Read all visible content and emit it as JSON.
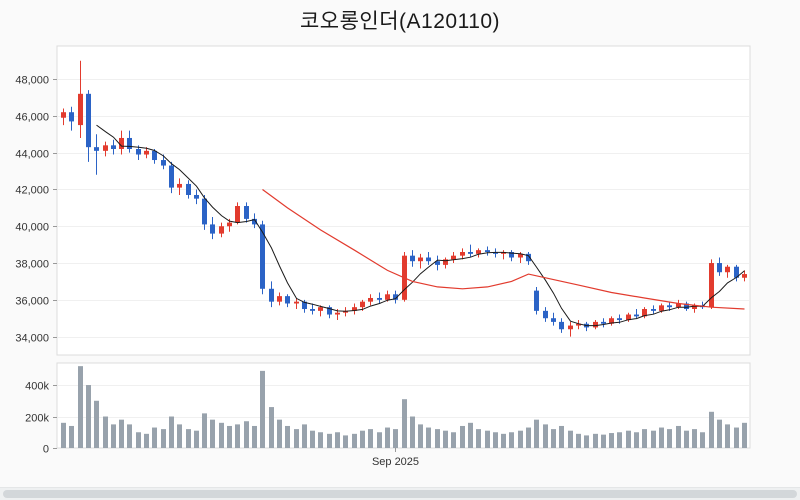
{
  "page": {
    "background": "#fafafa"
  },
  "chart_data": {
    "type": "candlestick",
    "title": "코오롱인더(A120110)",
    "x_axis": {
      "tick_index": 40,
      "tick_label": "Sep 2025"
    },
    "price_axis": {
      "min": 33000,
      "max": 49800,
      "ticks": [
        {
          "v": 48000,
          "label": "48,000"
        },
        {
          "v": 46000,
          "label": "46,000"
        },
        {
          "v": 44000,
          "label": "44,000"
        },
        {
          "v": 42000,
          "label": "42,000"
        },
        {
          "v": 40000,
          "label": "40,000"
        },
        {
          "v": 38000,
          "label": "38,000"
        },
        {
          "v": 36000,
          "label": "36,000"
        },
        {
          "v": 34000,
          "label": "34,000"
        }
      ]
    },
    "volume_axis": {
      "max": 540000,
      "ticks": [
        {
          "v": 400000,
          "label": "400k"
        },
        {
          "v": 200000,
          "label": "200k"
        },
        {
          "v": 0,
          "label": "0"
        }
      ]
    },
    "colors": {
      "up": "#e23b2e",
      "down": "#2b63c6",
      "volume": "#98a2ac",
      "ma_short": "#1a1a1a",
      "ma_long": "#e23b2e",
      "panel_border": "#dcdcdc",
      "grid": "#f0f0f0",
      "axis_text": "#333333"
    },
    "candles": [
      [
        45900,
        46400,
        45500,
        46200
      ],
      [
        46200,
        46500,
        45200,
        45700
      ],
      [
        45500,
        49000,
        44800,
        47200
      ],
      [
        47200,
        47400,
        43500,
        44300
      ],
      [
        44300,
        45000,
        42800,
        44100
      ],
      [
        44100,
        44600,
        43800,
        44400
      ],
      [
        44400,
        44700,
        43900,
        44200
      ],
      [
        44200,
        45200,
        43900,
        44800
      ],
      [
        44800,
        45200,
        44000,
        44200
      ],
      [
        44200,
        44400,
        43600,
        43900
      ],
      [
        43900,
        44300,
        43700,
        44100
      ],
      [
        44100,
        44200,
        43400,
        43600
      ],
      [
        43600,
        43900,
        43100,
        43300
      ],
      [
        43300,
        43500,
        41800,
        42100
      ],
      [
        42100,
        42600,
        41700,
        42300
      ],
      [
        42300,
        42500,
        41500,
        41700
      ],
      [
        41700,
        42000,
        41200,
        41500
      ],
      [
        41500,
        41700,
        39800,
        40100
      ],
      [
        40100,
        40500,
        39300,
        39600
      ],
      [
        39600,
        40200,
        39400,
        40000
      ],
      [
        40000,
        40400,
        39700,
        40200
      ],
      [
        40200,
        41300,
        40100,
        41100
      ],
      [
        41100,
        41300,
        40200,
        40400
      ],
      [
        40400,
        40700,
        39900,
        40100
      ],
      [
        40100,
        40300,
        36300,
        36600
      ],
      [
        36600,
        37000,
        35600,
        35900
      ],
      [
        35900,
        36400,
        35700,
        36200
      ],
      [
        36200,
        36300,
        35600,
        35800
      ],
      [
        35800,
        36100,
        35500,
        35900
      ],
      [
        35900,
        36000,
        35300,
        35500
      ],
      [
        35500,
        35800,
        35200,
        35400
      ],
      [
        35400,
        35700,
        35100,
        35600
      ],
      [
        35600,
        35700,
        35000,
        35200
      ],
      [
        35200,
        35500,
        34900,
        35300
      ],
      [
        35300,
        35600,
        35100,
        35400
      ],
      [
        35400,
        35800,
        35200,
        35600
      ],
      [
        35600,
        36000,
        35400,
        35900
      ],
      [
        35900,
        36300,
        35700,
        36100
      ],
      [
        36100,
        36400,
        35800,
        36000
      ],
      [
        36000,
        36500,
        35900,
        36300
      ],
      [
        36300,
        36500,
        35800,
        36000
      ],
      [
        36000,
        38600,
        35900,
        38400
      ],
      [
        38400,
        38700,
        37800,
        38100
      ],
      [
        38100,
        38500,
        37700,
        38300
      ],
      [
        38300,
        38600,
        37900,
        38100
      ],
      [
        38100,
        38400,
        37600,
        37900
      ],
      [
        37900,
        38300,
        37700,
        38200
      ],
      [
        38200,
        38600,
        38000,
        38400
      ],
      [
        38400,
        38800,
        38200,
        38600
      ],
      [
        38600,
        39000,
        38300,
        38500
      ],
      [
        38500,
        38800,
        38300,
        38700
      ],
      [
        38700,
        38900,
        38400,
        38600
      ],
      [
        38600,
        38800,
        38300,
        38500
      ],
      [
        38500,
        38700,
        38200,
        38600
      ],
      [
        38600,
        38700,
        38100,
        38300
      ],
      [
        38300,
        38600,
        38000,
        38500
      ],
      [
        38500,
        38600,
        37900,
        38100
      ],
      [
        36500,
        36700,
        35200,
        35400
      ],
      [
        35400,
        35600,
        34800,
        35000
      ],
      [
        35000,
        35300,
        34600,
        34800
      ],
      [
        34800,
        35000,
        34200,
        34400
      ],
      [
        34400,
        34800,
        34000,
        34600
      ],
      [
        34600,
        34900,
        34400,
        34700
      ],
      [
        34700,
        34800,
        34300,
        34500
      ],
      [
        34500,
        34900,
        34400,
        34800
      ],
      [
        34800,
        35000,
        34500,
        34700
      ],
      [
        34700,
        35100,
        34600,
        35000
      ],
      [
        35000,
        35200,
        34700,
        34900
      ],
      [
        34900,
        35300,
        34800,
        35200
      ],
      [
        35200,
        35500,
        35000,
        35100
      ],
      [
        35100,
        35600,
        35000,
        35500
      ],
      [
        35500,
        35700,
        35200,
        35400
      ],
      [
        35400,
        35800,
        35300,
        35700
      ],
      [
        35700,
        35900,
        35400,
        35600
      ],
      [
        35600,
        36000,
        35500,
        35800
      ],
      [
        35800,
        35900,
        35400,
        35500
      ],
      [
        35500,
        35800,
        35300,
        35700
      ],
      [
        35700,
        35900,
        35500,
        35600
      ],
      [
        35600,
        38200,
        35500,
        38000
      ],
      [
        38000,
        38300,
        37300,
        37500
      ],
      [
        37500,
        37900,
        37200,
        37800
      ],
      [
        37800,
        37900,
        37000,
        37200
      ],
      [
        37200,
        37600,
        37000,
        37400
      ]
    ],
    "volumes": [
      160000,
      140000,
      520000,
      400000,
      300000,
      200000,
      150000,
      180000,
      150000,
      100000,
      90000,
      130000,
      120000,
      200000,
      150000,
      120000,
      110000,
      220000,
      180000,
      160000,
      140000,
      150000,
      170000,
      140000,
      490000,
      260000,
      180000,
      140000,
      120000,
      150000,
      110000,
      100000,
      90000,
      100000,
      80000,
      90000,
      110000,
      120000,
      100000,
      130000,
      120000,
      310000,
      200000,
      150000,
      130000,
      120000,
      110000,
      100000,
      140000,
      160000,
      120000,
      110000,
      100000,
      90000,
      100000,
      110000,
      130000,
      180000,
      150000,
      120000,
      140000,
      110000,
      90000,
      80000,
      90000,
      85000,
      95000,
      100000,
      110000,
      100000,
      120000,
      110000,
      130000,
      120000,
      140000,
      110000,
      120000,
      100000,
      230000,
      180000,
      150000,
      130000,
      160000
    ],
    "ma_short_period": 5,
    "ma_long_points": [
      [
        24,
        42000
      ],
      [
        27,
        41000
      ],
      [
        31,
        39800
      ],
      [
        35,
        38700
      ],
      [
        39,
        37600
      ],
      [
        42,
        37000
      ],
      [
        45,
        36700
      ],
      [
        48,
        36600
      ],
      [
        51,
        36700
      ],
      [
        54,
        37000
      ],
      [
        56,
        37400
      ],
      [
        58,
        37200
      ],
      [
        62,
        36800
      ],
      [
        66,
        36400
      ],
      [
        70,
        36100
      ],
      [
        74,
        35800
      ],
      [
        78,
        35600
      ],
      [
        82,
        35500
      ]
    ]
  }
}
